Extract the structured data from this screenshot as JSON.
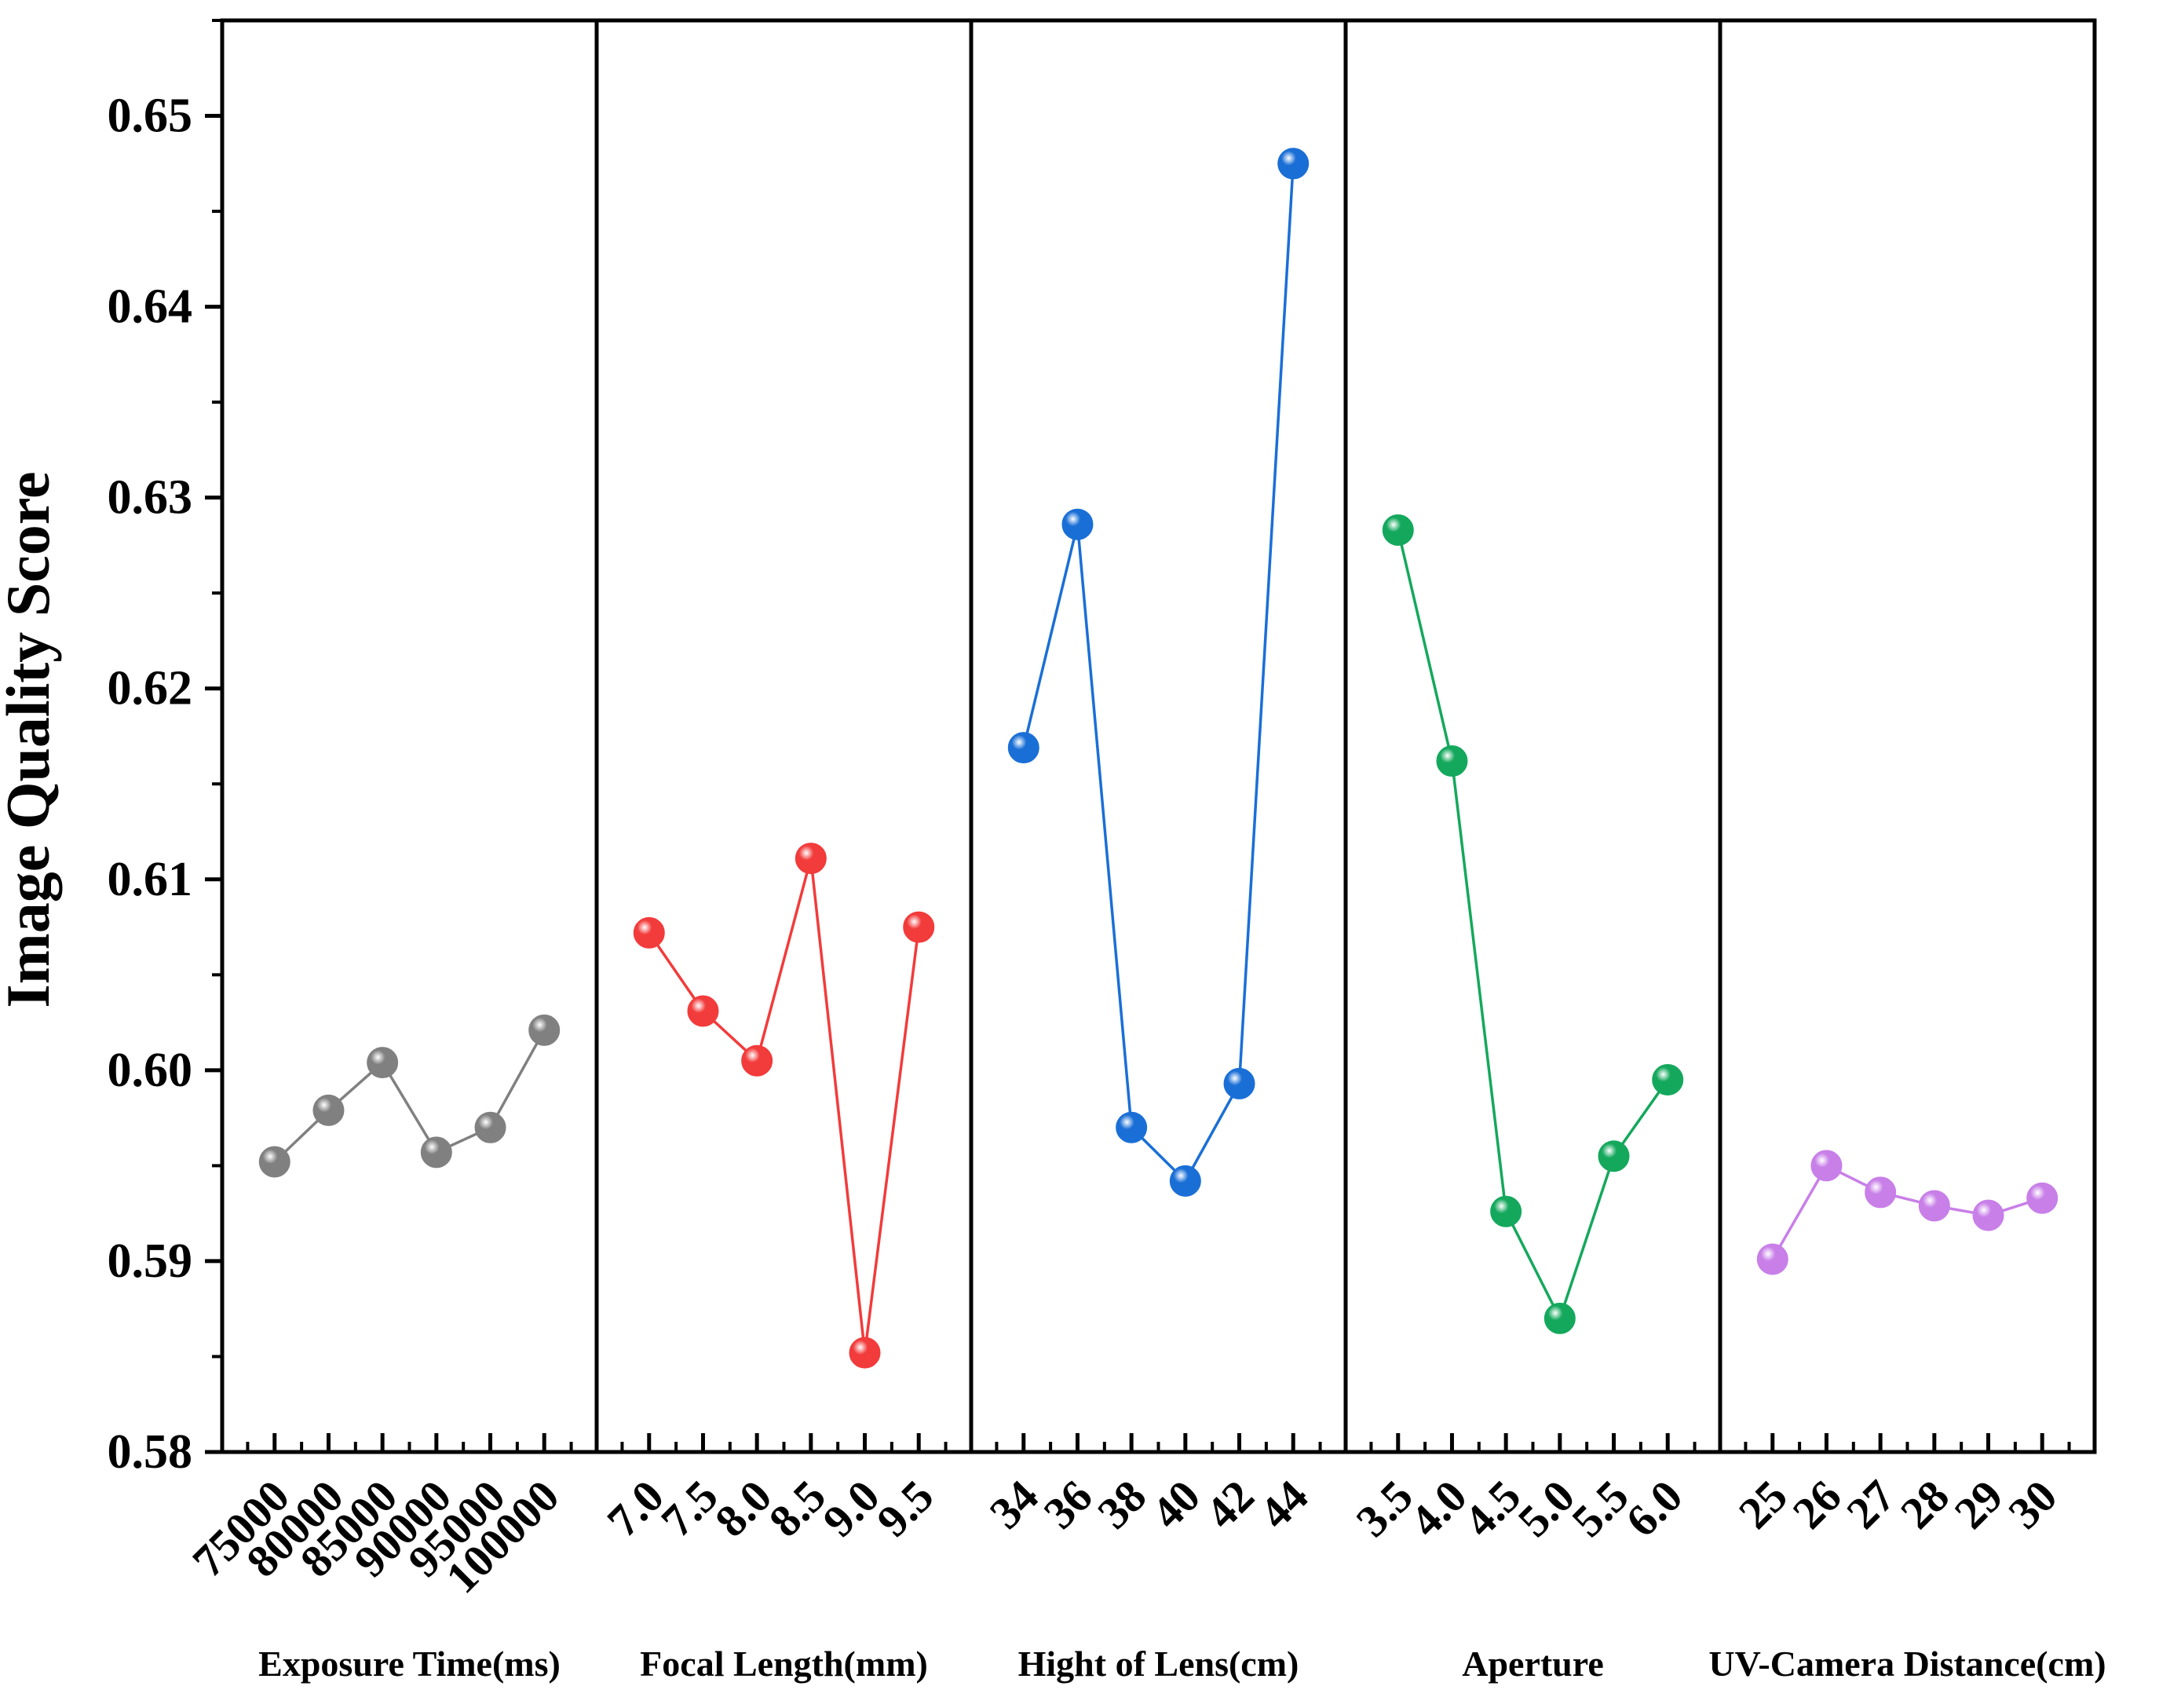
{
  "chart_data": {
    "type": "line",
    "ylabel": "Image Quality Score",
    "ylim": [
      0.58,
      0.655
    ],
    "yticks": [
      "0.58",
      "0.59",
      "0.60",
      "0.61",
      "0.62",
      "0.63",
      "0.64",
      "0.65"
    ],
    "panels": [
      {
        "name": "Exposure Time(ms)",
        "color": "#808080",
        "categories": [
          "75000",
          "80000",
          "85000",
          "90000",
          "95000",
          "100000"
        ],
        "values": [
          0.5952,
          0.5979,
          0.6004,
          0.5957,
          0.597,
          0.6021
        ]
      },
      {
        "name": "Focal Length(mm)",
        "color": "#f23b3b",
        "categories": [
          "7.0",
          "7.5",
          "8.0",
          "8.5",
          "9.0",
          "9.5"
        ],
        "values": [
          0.6072,
          0.6031,
          0.6005,
          0.6111,
          0.5852,
          0.6075
        ]
      },
      {
        "name": "Hight of Lens(cm)",
        "color": "#1a6fd6",
        "categories": [
          "34",
          "36",
          "38",
          "40",
          "42",
          "44"
        ],
        "values": [
          0.6169,
          0.6286,
          0.597,
          0.5942,
          0.5993,
          0.6475
        ]
      },
      {
        "name": "Aperture",
        "color": "#14a85c",
        "categories": [
          "3.5",
          "4.0",
          "4.5",
          "5.0",
          "5.5",
          "6.0"
        ],
        "values": [
          0.6283,
          0.6162,
          0.5926,
          0.587,
          0.5955,
          0.5995
        ]
      },
      {
        "name": "UV-Camera Distance(cm)",
        "color": "#c87fe8",
        "categories": [
          "25",
          "26",
          "27",
          "28",
          "29",
          "30"
        ],
        "values": [
          0.5901,
          0.595,
          0.5936,
          0.5929,
          0.5924,
          0.5933
        ]
      }
    ]
  }
}
